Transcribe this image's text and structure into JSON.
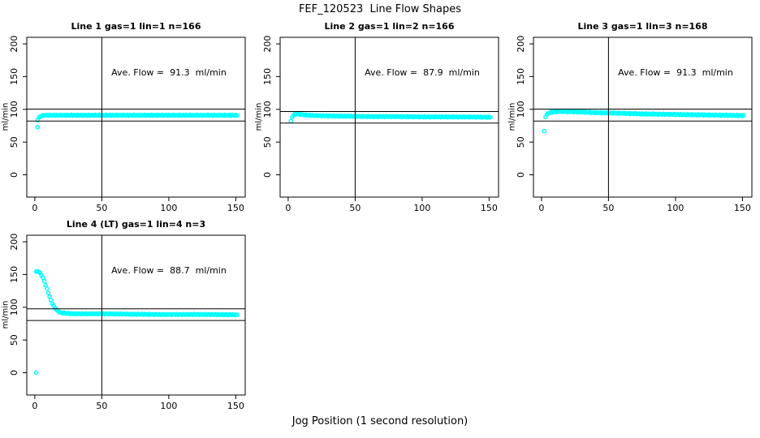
{
  "page": {
    "title": "FEF_120523  Line Flow Shapes",
    "xlabel": "Jog Position (1 second resolution)",
    "background_color": "#FFFFFF",
    "axis_color": "#000000",
    "point_color": "#00FFFF"
  },
  "chart_data": [
    {
      "type": "scatter",
      "title": "Line 1 gas=1 lin=1 n=166",
      "annotation": "Ave. Flow =  91.3  ml/min",
      "ave_flow": 91.3,
      "gas": 1,
      "lin": 1,
      "n": 166,
      "ylabel": "ml/min",
      "marker": "open-circle",
      "point_color": "#00FFFF",
      "xticks": [
        0,
        50,
        100,
        150
      ],
      "yticks": [
        0,
        50,
        100,
        150,
        200
      ],
      "xlim": [
        -6,
        157
      ],
      "ylim": [
        -34,
        210
      ],
      "hlines": [
        100.4,
        82.2
      ],
      "vline": 50,
      "outliers": [
        [
          2,
          73
        ]
      ],
      "trend": [
        [
          2,
          84
        ],
        [
          3,
          87
        ],
        [
          4,
          89
        ],
        [
          5,
          90
        ],
        [
          7,
          91
        ],
        [
          15,
          91
        ],
        [
          30,
          91
        ],
        [
          50,
          91
        ],
        [
          75,
          91
        ],
        [
          100,
          91
        ],
        [
          125,
          91
        ],
        [
          151,
          91
        ]
      ],
      "noise": 0.6,
      "x_end": 151
    },
    {
      "type": "scatter",
      "title": "Line 2 gas=1 lin=2 n=166",
      "annotation": "Ave. Flow =  87.9  ml/min",
      "ave_flow": 87.9,
      "gas": 1,
      "lin": 2,
      "n": 166,
      "ylabel": "ml/min",
      "marker": "open-circle",
      "point_color": "#00FFFF",
      "xticks": [
        0,
        50,
        100,
        150
      ],
      "yticks": [
        0,
        50,
        100,
        150,
        200
      ],
      "xlim": [
        -6,
        157
      ],
      "ylim": [
        -34,
        210
      ],
      "hlines": [
        96.7,
        79.1
      ],
      "vline": 50,
      "outliers": [
        [
          2,
          82
        ]
      ],
      "trend": [
        [
          3,
          88
        ],
        [
          4,
          91
        ],
        [
          5,
          92.5
        ],
        [
          7,
          93
        ],
        [
          10,
          92
        ],
        [
          15,
          91
        ],
        [
          20,
          90.5
        ],
        [
          30,
          90
        ],
        [
          45,
          89.5
        ],
        [
          60,
          89
        ],
        [
          80,
          89
        ],
        [
          100,
          88.5
        ],
        [
          125,
          88.5
        ],
        [
          151,
          88
        ]
      ],
      "noise": 0.6,
      "x_end": 151
    },
    {
      "type": "scatter",
      "title": "Line 3 gas=1 lin=3 n=168",
      "annotation": "Ave. Flow =  91.3  ml/min",
      "ave_flow": 91.3,
      "gas": 1,
      "lin": 3,
      "n": 168,
      "ylabel": "ml/min",
      "marker": "open-circle",
      "point_color": "#00FFFF",
      "xticks": [
        0,
        50,
        100,
        150
      ],
      "yticks": [
        0,
        50,
        100,
        150,
        200
      ],
      "xlim": [
        -6,
        157
      ],
      "ylim": [
        -34,
        210
      ],
      "hlines": [
        100.4,
        82.2
      ],
      "vline": 50,
      "outliers": [
        [
          2,
          67
        ]
      ],
      "trend": [
        [
          3,
          89
        ],
        [
          4,
          92
        ],
        [
          5,
          94
        ],
        [
          6,
          95
        ],
        [
          8,
          96
        ],
        [
          10,
          96.5
        ],
        [
          15,
          97
        ],
        [
          20,
          96.5
        ],
        [
          30,
          96
        ],
        [
          40,
          95
        ],
        [
          50,
          94.5
        ],
        [
          60,
          94
        ],
        [
          75,
          93
        ],
        [
          90,
          92.5
        ],
        [
          105,
          92
        ],
        [
          120,
          91.5
        ],
        [
          135,
          91
        ],
        [
          151,
          90.5
        ]
      ],
      "noise": 0.7,
      "x_end": 151
    },
    {
      "type": "scatter",
      "title": "Line 4 (LT) gas=1 lin=4 n=3",
      "annotation": "Ave. Flow =  88.7  ml/min",
      "ave_flow": 88.7,
      "gas": 1,
      "lin": 4,
      "n": 3,
      "ylabel": "ml/min",
      "marker": "open-circle",
      "point_color": "#00FFFF",
      "xticks": [
        0,
        50,
        100,
        150
      ],
      "yticks": [
        0,
        50,
        100,
        150,
        200
      ],
      "xlim": [
        -6,
        157
      ],
      "ylim": [
        -34,
        210
      ],
      "hlines": [
        97.6,
        79.8
      ],
      "vline": 50,
      "outliers": [
        [
          1,
          0
        ]
      ],
      "trend": [
        [
          1,
          154
        ],
        [
          2,
          155
        ],
        [
          3,
          154
        ],
        [
          4,
          152
        ],
        [
          5,
          149
        ],
        [
          6,
          145
        ],
        [
          7,
          140
        ],
        [
          8,
          134
        ],
        [
          9,
          128
        ],
        [
          10,
          122
        ],
        [
          11,
          116
        ],
        [
          12,
          111
        ],
        [
          13,
          106
        ],
        [
          14,
          102
        ],
        [
          15,
          99
        ],
        [
          16,
          96.5
        ],
        [
          17,
          94.5
        ],
        [
          18,
          93
        ],
        [
          19,
          92
        ],
        [
          20,
          91.5
        ],
        [
          22,
          91
        ],
        [
          25,
          90.5
        ],
        [
          30,
          90
        ],
        [
          40,
          90
        ],
        [
          50,
          90
        ],
        [
          70,
          89.5
        ],
        [
          90,
          89
        ],
        [
          110,
          89
        ],
        [
          130,
          89
        ],
        [
          151,
          88.5
        ]
      ],
      "noise": 0.55,
      "x_end": 151
    }
  ]
}
